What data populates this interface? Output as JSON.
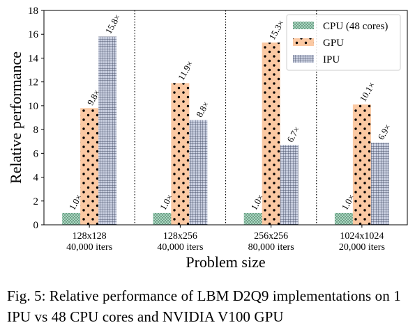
{
  "chart_data": {
    "type": "bar",
    "categories": [
      [
        "128x128",
        "40,000 iters"
      ],
      [
        "128x256",
        "40,000 iters"
      ],
      [
        "256x256",
        "80,000 iters"
      ],
      [
        "1024x1024",
        "20,000 iters"
      ]
    ],
    "series": [
      {
        "name": "CPU (48 cores)",
        "values": [
          1.0,
          1.0,
          1.0,
          1.0
        ],
        "labels": [
          "1.0×",
          "1.0×",
          "1.0×",
          "1.0×"
        ],
        "color": "#a8d8c0",
        "pattern": "dots-dense"
      },
      {
        "name": "GPU",
        "values": [
          9.8,
          11.9,
          15.3,
          10.1
        ],
        "labels": [
          "9.8×",
          "11.9×",
          "15.3×",
          "10.1×"
        ],
        "color": "#fbc9a3",
        "pattern": "dots"
      },
      {
        "name": "IPU",
        "values": [
          15.8,
          8.8,
          6.7,
          6.9
        ],
        "labels": [
          "15.8×",
          "8.8×",
          "6.7×",
          "6.9×"
        ],
        "color": "#c9cfe0",
        "pattern": "grid"
      }
    ],
    "xlabel": "Problem size",
    "ylabel": "Relative performance",
    "ylim": [
      0,
      18
    ],
    "yticks": [
      0,
      2,
      4,
      6,
      8,
      10,
      12,
      14,
      16,
      18
    ],
    "grid": false,
    "group_separators": "dotted vertical lines",
    "legend_position": "top-right"
  },
  "caption": "Fig. 5: Relative performance of LBM D2Q9 implementations on 1 IPU vs 48 CPU cores and NVIDIA V100 GPU"
}
